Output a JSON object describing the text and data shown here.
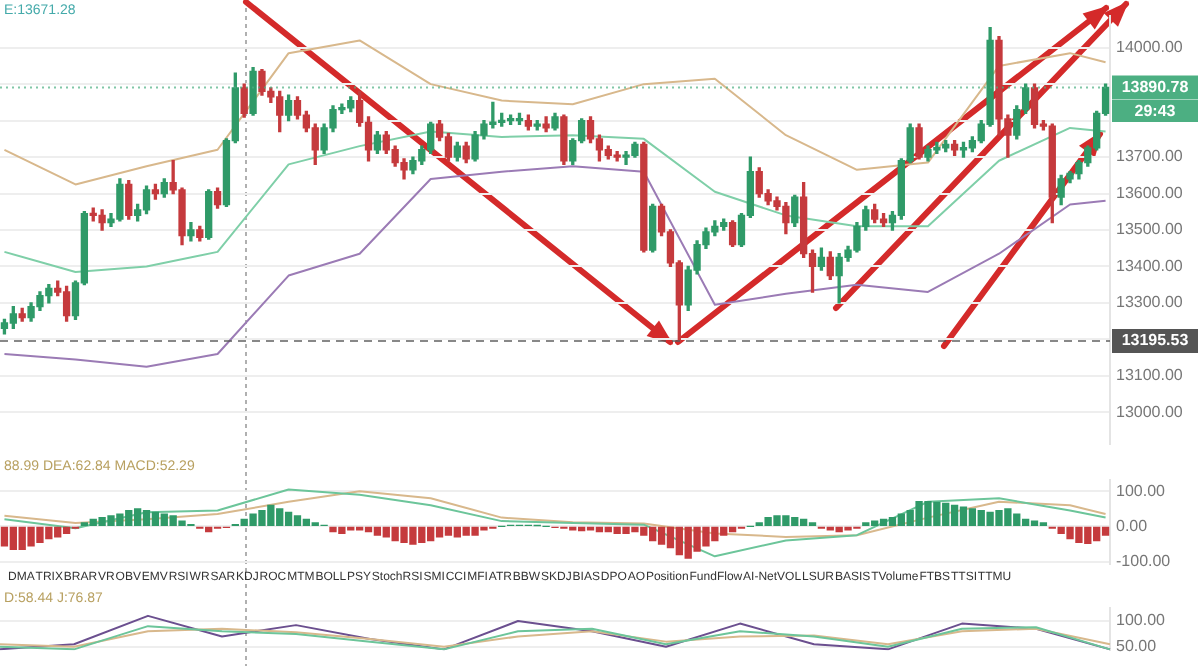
{
  "chart_data": [
    {
      "type": "candlestick",
      "categories": [
        null,
        null,
        null,
        null,
        null,
        null,
        null,
        null,
        null,
        null,
        null,
        null,
        null,
        null,
        null,
        null,
        null,
        null,
        null,
        null,
        null,
        null,
        null,
        null,
        null,
        null,
        null,
        null,
        null,
        null,
        null,
        null,
        null,
        null,
        null,
        null,
        null,
        null,
        null,
        null,
        null,
        null,
        null,
        null,
        null,
        null,
        null,
        null,
        null,
        null,
        null,
        null,
        null,
        null,
        null,
        null,
        null,
        null,
        null,
        null,
        null,
        null,
        null,
        null,
        null,
        null,
        null,
        null,
        null,
        null,
        null,
        null,
        null,
        null,
        null,
        null,
        null,
        null,
        null,
        null,
        null,
        null,
        null,
        null,
        null,
        null,
        null,
        null,
        null,
        null,
        null,
        null,
        null,
        null,
        null,
        null,
        null,
        null,
        null,
        null,
        null,
        null,
        null,
        null,
        null,
        null,
        null,
        null,
        null,
        null,
        null,
        null,
        null,
        null,
        null,
        null,
        null,
        null,
        null,
        null,
        null,
        null,
        null,
        null,
        null
      ],
      "ohlc": [
        [
          13230,
          13255,
          13215,
          13245
        ],
        [
          13245,
          13290,
          13230,
          13270
        ],
        [
          13270,
          13285,
          13250,
          13260
        ],
        [
          13260,
          13300,
          13250,
          13290
        ],
        [
          13290,
          13330,
          13280,
          13320
        ],
        [
          13320,
          13350,
          13300,
          13340
        ],
        [
          13340,
          13360,
          13320,
          13330
        ],
        [
          13330,
          13345,
          13250,
          13265
        ],
        [
          13265,
          13360,
          13255,
          13355
        ],
        [
          13355,
          13550,
          13350,
          13545
        ],
        [
          13545,
          13560,
          13525,
          13540
        ],
        [
          13540,
          13555,
          13500,
          13520
        ],
        [
          13520,
          13545,
          13510,
          13530
        ],
        [
          13530,
          13640,
          13525,
          13625
        ],
        [
          13625,
          13635,
          13530,
          13540
        ],
        [
          13540,
          13570,
          13525,
          13555
        ],
        [
          13555,
          13620,
          13545,
          13610
        ],
        [
          13610,
          13625,
          13585,
          13600
        ],
        [
          13600,
          13640,
          13590,
          13630
        ],
        [
          13630,
          13690,
          13600,
          13610
        ],
        [
          13610,
          13615,
          13460,
          13485
        ],
        [
          13485,
          13520,
          13470,
          13500
        ],
        [
          13500,
          13510,
          13470,
          13480
        ],
        [
          13480,
          13610,
          13475,
          13605
        ],
        [
          13605,
          13615,
          13560,
          13570
        ],
        [
          13570,
          13750,
          13565,
          13745
        ],
        [
          13745,
          13930,
          13740,
          13890
        ],
        [
          13890,
          13900,
          13810,
          13820
        ],
        [
          13820,
          13945,
          13815,
          13935
        ],
        [
          13935,
          13940,
          13870,
          13880
        ],
        [
          13880,
          13890,
          13850,
          13865
        ],
        [
          13865,
          13880,
          13770,
          13815
        ],
        [
          13815,
          13870,
          13800,
          13855
        ],
        [
          13855,
          13865,
          13805,
          13815
        ],
        [
          13815,
          13825,
          13770,
          13780
        ],
        [
          13780,
          13790,
          13680,
          13720
        ],
        [
          13720,
          13790,
          13710,
          13780
        ],
        [
          13780,
          13840,
          13770,
          13830
        ],
        [
          13830,
          13845,
          13820,
          13835
        ],
        [
          13835,
          13865,
          13825,
          13855
        ],
        [
          13855,
          13880,
          13785,
          13795
        ],
        [
          13795,
          13810,
          13690,
          13720
        ],
        [
          13720,
          13770,
          13710,
          13760
        ],
        [
          13760,
          13770,
          13710,
          13720
        ],
        [
          13720,
          13730,
          13675,
          13685
        ],
        [
          13685,
          13695,
          13640,
          13665
        ],
        [
          13665,
          13700,
          13655,
          13690
        ],
        [
          13690,
          13730,
          13680,
          13720
        ],
        [
          13720,
          13795,
          13710,
          13790
        ],
        [
          13790,
          13800,
          13745,
          13755
        ],
        [
          13755,
          13765,
          13690,
          13700
        ],
        [
          13700,
          13740,
          13690,
          13730
        ],
        [
          13730,
          13740,
          13685,
          13695
        ],
        [
          13695,
          13770,
          13690,
          13760
        ],
        [
          13760,
          13800,
          13750,
          13790
        ],
        [
          13790,
          13850,
          13780,
          13795
        ],
        [
          13795,
          13820,
          13785,
          13800
        ],
        [
          13800,
          13815,
          13790,
          13800
        ],
        [
          13800,
          13820,
          13790,
          13800
        ],
        [
          13800,
          13815,
          13775,
          13785
        ],
        [
          13785,
          13800,
          13775,
          13790
        ],
        [
          13790,
          13810,
          13770,
          13780
        ],
        [
          13780,
          13820,
          13775,
          13810
        ],
        [
          13810,
          13815,
          13680,
          13690
        ],
        [
          13690,
          13750,
          13680,
          13745
        ],
        [
          13745,
          13805,
          13740,
          13800
        ],
        [
          13800,
          13810,
          13740,
          13750
        ],
        [
          13750,
          13760,
          13690,
          13720
        ],
        [
          13720,
          13730,
          13695,
          13705
        ],
        [
          13705,
          13715,
          13690,
          13700
        ],
        [
          13700,
          13715,
          13680,
          13705
        ],
        [
          13705,
          13740,
          13700,
          13735
        ],
        [
          13735,
          13740,
          13440,
          13445
        ],
        [
          13445,
          13570,
          13440,
          13565
        ],
        [
          13565,
          13570,
          13485,
          13495
        ],
        [
          13495,
          13500,
          13400,
          13410
        ],
        [
          13410,
          13415,
          13195.53,
          13295
        ],
        [
          13295,
          13400,
          13280,
          13390
        ],
        [
          13390,
          13470,
          13380,
          13460
        ],
        [
          13460,
          13505,
          13450,
          13495
        ],
        [
          13495,
          13525,
          13485,
          13510
        ],
        [
          13510,
          13530,
          13500,
          13520
        ],
        [
          13520,
          13525,
          13455,
          13460
        ],
        [
          13460,
          13545,
          13455,
          13540
        ],
        [
          13540,
          13700,
          13535,
          13660
        ],
        [
          13660,
          13670,
          13590,
          13600
        ],
        [
          13600,
          13610,
          13570,
          13580
        ],
        [
          13580,
          13590,
          13555,
          13565
        ],
        [
          13565,
          13575,
          13490,
          13520
        ],
        [
          13520,
          13595,
          13510,
          13590
        ],
        [
          13590,
          13630,
          13425,
          13435
        ],
        [
          13435,
          13445,
          13330,
          13400
        ],
        [
          13400,
          13450,
          13390,
          13425
        ],
        [
          13425,
          13440,
          13365,
          13375
        ],
        [
          13375,
          13435,
          13300,
          13425
        ],
        [
          13425,
          13455,
          13415,
          13445
        ],
        [
          13445,
          13520,
          13440,
          13510
        ],
        [
          13510,
          13565,
          13500,
          13555
        ],
        [
          13555,
          13570,
          13520,
          13530
        ],
        [
          13530,
          13545,
          13510,
          13520
        ],
        [
          13520,
          13550,
          13500,
          13540
        ],
        [
          13540,
          13695,
          13530,
          13690
        ],
        [
          13690,
          13790,
          13685,
          13780
        ],
        [
          13780,
          13790,
          13695,
          13700
        ],
        [
          13700,
          13730,
          13690,
          13720
        ],
        [
          13720,
          13740,
          13710,
          13725
        ],
        [
          13725,
          13745,
          13715,
          13735
        ],
        [
          13735,
          13745,
          13705,
          13720
        ],
        [
          13720,
          13740,
          13700,
          13725
        ],
        [
          13725,
          13755,
          13715,
          13745
        ],
        [
          13745,
          13800,
          13740,
          13790
        ],
        [
          13790,
          14055,
          13785,
          14020
        ],
        [
          14020,
          14030,
          13760,
          13805
        ],
        [
          13805,
          13815,
          13700,
          13760
        ],
        [
          13760,
          13840,
          13750,
          13830
        ],
        [
          13830,
          13900,
          13820,
          13890
        ],
        [
          13890,
          13900,
          13780,
          13790
        ],
        [
          13790,
          13800,
          13775,
          13785
        ],
        [
          13785,
          13790,
          13520,
          13590
        ],
        [
          13590,
          13650,
          13570,
          13640
        ],
        [
          13640,
          13660,
          13630,
          13655
        ],
        [
          13655,
          13690,
          13640,
          13685
        ],
        [
          13685,
          13730,
          13675,
          13725
        ],
        [
          13725,
          13825,
          13720,
          13820
        ],
        [
          13820,
          13900,
          13815,
          13890.78
        ]
      ],
      "colors": [
        "#2f9a68",
        "#2f9a68",
        "#c53a3d",
        "#2f9a68",
        "#2f9a68",
        "#2f9a68",
        "#c53a3d",
        "#c53a3d",
        "#2f9a68",
        "#2f9a68",
        "#c53a3d",
        "#c53a3d",
        "#2f9a68",
        "#2f9a68",
        "#c53a3d",
        "#2f9a68",
        "#2f9a68",
        "#c53a3d",
        "#2f9a68",
        "#c53a3d",
        "#c53a3d",
        "#2f9a68",
        "#c53a3d",
        "#2f9a68",
        "#c53a3d",
        "#2f9a68",
        "#2f9a68",
        "#c53a3d",
        "#2f9a68",
        "#c53a3d",
        "#c53a3d",
        "#c53a3d",
        "#2f9a68",
        "#c53a3d",
        "#c53a3d",
        "#c53a3d",
        "#2f9a68",
        "#2f9a68",
        "#2f9a68",
        "#2f9a68",
        "#c53a3d",
        "#c53a3d",
        "#2f9a68",
        "#c53a3d",
        "#c53a3d",
        "#c53a3d",
        "#2f9a68",
        "#2f9a68",
        "#2f9a68",
        "#c53a3d",
        "#c53a3d",
        "#2f9a68",
        "#c53a3d",
        "#2f9a68",
        "#2f9a68",
        "#2f9a68",
        "#2f9a68",
        "#2f9a68",
        "#2f9a68",
        "#c53a3d",
        "#2f9a68",
        "#c53a3d",
        "#2f9a68",
        "#c53a3d",
        "#2f9a68",
        "#2f9a68",
        "#c53a3d",
        "#c53a3d",
        "#c53a3d",
        "#c53a3d",
        "#2f9a68",
        "#2f9a68",
        "#c53a3d",
        "#2f9a68",
        "#c53a3d",
        "#c53a3d",
        "#c53a3d",
        "#2f9a68",
        "#2f9a68",
        "#2f9a68",
        "#2f9a68",
        "#2f9a68",
        "#c53a3d",
        "#2f9a68",
        "#2f9a68",
        "#c53a3d",
        "#c53a3d",
        "#c53a3d",
        "#c53a3d",
        "#2f9a68",
        "#c53a3d",
        "#c53a3d",
        "#2f9a68",
        "#c53a3d",
        "#2f9a68",
        "#2f9a68",
        "#2f9a68",
        "#2f9a68",
        "#c53a3d",
        "#c53a3d",
        "#2f9a68",
        "#2f9a68",
        "#2f9a68",
        "#c53a3d",
        "#2f9a68",
        "#2f9a68",
        "#2f9a68",
        "#c53a3d",
        "#2f9a68",
        "#2f9a68",
        "#2f9a68",
        "#2f9a68",
        "#c53a3d",
        "#c53a3d",
        "#2f9a68",
        "#2f9a68",
        "#c53a3d",
        "#c53a3d",
        "#c53a3d",
        "#2f9a68",
        "#2f9a68",
        "#2f9a68",
        "#2f9a68",
        "#2f9a68",
        "#2f9a68"
      ],
      "series": [
        {
          "type": "line",
          "color": "#d8b88c",
          "values": [
            13720,
            null,
            null,
            null,
            null,
            null,
            null,
            null,
            13625,
            null,
            null,
            null,
            null,
            null,
            null,
            null,
            13675,
            null,
            null,
            null,
            null,
            null,
            null,
            null,
            13720,
            null,
            null,
            null,
            null,
            null,
            null,
            null,
            13985,
            null,
            null,
            null,
            null,
            null,
            null,
            null,
            14020,
            null,
            null,
            null,
            null,
            null,
            null,
            null,
            13900,
            null,
            null,
            null,
            null,
            null,
            null,
            null,
            13855,
            null,
            null,
            null,
            null,
            null,
            null,
            null,
            13845,
            null,
            null,
            null,
            null,
            null,
            null,
            null,
            13900,
            null,
            null,
            null,
            null,
            null,
            null,
            null,
            13915,
            null,
            null,
            null,
            null,
            null,
            null,
            null,
            13760,
            null,
            null,
            null,
            null,
            null,
            null,
            null,
            13665,
            null,
            null,
            null,
            null,
            null,
            null,
            null,
            13685,
            null,
            null,
            null,
            null,
            null,
            null,
            null,
            13950,
            null,
            null,
            null,
            null,
            null,
            null,
            null,
            13985,
            null,
            null,
            null,
            13960
          ]
        },
        {
          "type": "line",
          "color": "#7fcfa8",
          "values": [
            13440,
            null,
            null,
            null,
            null,
            null,
            null,
            null,
            13385,
            null,
            null,
            null,
            null,
            null,
            null,
            null,
            13400,
            null,
            null,
            null,
            null,
            null,
            null,
            null,
            13440,
            null,
            null,
            null,
            null,
            null,
            null,
            null,
            13680,
            null,
            null,
            null,
            null,
            null,
            null,
            null,
            13730,
            null,
            null,
            null,
            null,
            null,
            null,
            null,
            13770,
            null,
            null,
            null,
            null,
            null,
            null,
            null,
            13755,
            null,
            null,
            null,
            null,
            null,
            null,
            null,
            13760,
            null,
            null,
            null,
            null,
            null,
            null,
            null,
            13750,
            null,
            null,
            null,
            null,
            null,
            null,
            null,
            13605,
            null,
            null,
            null,
            null,
            null,
            null,
            null,
            13540,
            null,
            null,
            null,
            null,
            null,
            null,
            null,
            13510,
            null,
            null,
            null,
            null,
            null,
            null,
            null,
            13510,
            null,
            null,
            null,
            null,
            null,
            null,
            null,
            13690,
            null,
            null,
            null,
            null,
            null,
            null,
            null,
            13780,
            null,
            null,
            null,
            13770
          ]
        },
        {
          "type": "line",
          "color": "#9b7bb5",
          "values": [
            13160,
            null,
            null,
            null,
            null,
            null,
            null,
            null,
            13145,
            null,
            null,
            null,
            null,
            null,
            null,
            null,
            13125,
            null,
            null,
            null,
            null,
            null,
            null,
            null,
            13160,
            null,
            null,
            null,
            null,
            null,
            null,
            null,
            13375,
            null,
            null,
            null,
            null,
            null,
            null,
            null,
            13435,
            null,
            null,
            null,
            null,
            null,
            null,
            null,
            13640,
            null,
            null,
            null,
            null,
            null,
            null,
            null,
            13660,
            null,
            null,
            null,
            null,
            null,
            null,
            null,
            13675,
            null,
            null,
            null,
            null,
            null,
            null,
            null,
            13660,
            null,
            null,
            null,
            null,
            null,
            null,
            null,
            13295,
            null,
            null,
            null,
            null,
            null,
            null,
            null,
            13325,
            null,
            null,
            null,
            null,
            null,
            null,
            null,
            13350,
            null,
            null,
            null,
            null,
            null,
            null,
            null,
            13330,
            null,
            null,
            null,
            null,
            null,
            null,
            null,
            13435,
            null,
            null,
            null,
            null,
            null,
            null,
            null,
            13570,
            null,
            null,
            null,
            13580
          ]
        }
      ],
      "ylim": [
        12912,
        14088
      ],
      "yticks": [
        {
          "value": 13000,
          "label": "13000.00"
        },
        {
          "value": 13100,
          "label": "13100.00"
        },
        {
          "value": 13200,
          "label": null
        },
        {
          "value": 13300,
          "label": "13300.00"
        },
        {
          "value": 13400,
          "label": "13400.00"
        },
        {
          "value": 13500,
          "label": "13500.00"
        },
        {
          "value": 13600,
          "label": "13600.00"
        },
        {
          "value": 13700,
          "label": "13700.00"
        },
        {
          "value": 13800,
          "label": null
        },
        {
          "value": 13900,
          "label": null
        },
        {
          "value": 14000,
          "label": "14000.00"
        }
      ],
      "ref_lines": [
        {
          "axis": "y",
          "value": 13890.78,
          "label": "13890.78",
          "color": "#4caf82",
          "line_style": "dotted"
        },
        {
          "axis": "y",
          "value": 13195.53,
          "label": "13195.53",
          "color": "#555555",
          "line_style": "dashed"
        }
      ],
      "annotations": [
        "E:13671.28",
        "29:43"
      ],
      "grid": "y",
      "tick_labels": "y",
      "legend": false
    },
    {
      "type": "bar",
      "categories": [
        null,
        null,
        null,
        null,
        null,
        null,
        null,
        null,
        null,
        null,
        null,
        null,
        null,
        null,
        null,
        null,
        null,
        null,
        null,
        null,
        null,
        null,
        null,
        null,
        null,
        null,
        null,
        null,
        null,
        null,
        null,
        null,
        null,
        null,
        null,
        null,
        null,
        null,
        null,
        null,
        null,
        null,
        null,
        null,
        null,
        null,
        null,
        null,
        null,
        null,
        null,
        null,
        null,
        null,
        null,
        null,
        null,
        null,
        null,
        null,
        null,
        null,
        null,
        null,
        null,
        null,
        null,
        null,
        null,
        null,
        null,
        null,
        null,
        null,
        null,
        null,
        null,
        null,
        null,
        null,
        null,
        null,
        null,
        null,
        null,
        null,
        null,
        null,
        null,
        null,
        null,
        null,
        null,
        null,
        null,
        null,
        null,
        null,
        null,
        null,
        null,
        null,
        null,
        null,
        null,
        null,
        null,
        null,
        null,
        null,
        null,
        null,
        null,
        null,
        null,
        null,
        null,
        null,
        null,
        null,
        null,
        null,
        null,
        null,
        null
      ],
      "values": [
        -55,
        -65,
        -65,
        -55,
        -45,
        -35,
        -30,
        -20,
        -5,
        10,
        20,
        25,
        30,
        35,
        45,
        50,
        45,
        40,
        35,
        30,
        15,
        5,
        -5,
        -15,
        -5,
        -3,
        5,
        20,
        35,
        45,
        60,
        50,
        40,
        30,
        20,
        10,
        3,
        -15,
        -20,
        -10,
        -10,
        -15,
        -25,
        -30,
        -40,
        -45,
        -50,
        -45,
        -40,
        -30,
        -25,
        -30,
        -25,
        -25,
        -10,
        -5,
        0,
        3,
        3,
        3,
        2,
        0,
        -3,
        -5,
        -10,
        -12,
        -10,
        -15,
        -15,
        -20,
        -20,
        -15,
        -25,
        -40,
        -50,
        -60,
        -80,
        -90,
        -70,
        -55,
        -40,
        -25,
        -15,
        -5,
        0,
        10,
        25,
        30,
        30,
        25,
        20,
        10,
        -5,
        -10,
        -15,
        -10,
        -5,
        10,
        15,
        20,
        25,
        35,
        45,
        70,
        70,
        68,
        65,
        60,
        55,
        50,
        45,
        40,
        45,
        50,
        35,
        20,
        15,
        10,
        -5,
        -20,
        -35,
        -45,
        -48,
        -40,
        -25
      ],
      "colors": [
        "#c53a3d",
        "#c53a3d",
        "#c53a3d",
        "#c53a3d",
        "#c53a3d",
        "#c53a3d",
        "#c53a3d",
        "#c53a3d",
        "#c53a3d",
        "#2f9a68",
        "#2f9a68",
        "#2f9a68",
        "#2f9a68",
        "#2f9a68",
        "#2f9a68",
        "#2f9a68",
        "#2f9a68",
        "#2f9a68",
        "#2f9a68",
        "#2f9a68",
        "#2f9a68",
        "#2f9a68",
        "#c53a3d",
        "#c53a3d",
        "#c53a3d",
        "#c53a3d",
        "#2f9a68",
        "#2f9a68",
        "#2f9a68",
        "#2f9a68",
        "#2f9a68",
        "#2f9a68",
        "#2f9a68",
        "#2f9a68",
        "#2f9a68",
        "#2f9a68",
        "#2f9a68",
        "#c53a3d",
        "#c53a3d",
        "#c53a3d",
        "#c53a3d",
        "#c53a3d",
        "#c53a3d",
        "#c53a3d",
        "#c53a3d",
        "#c53a3d",
        "#c53a3d",
        "#c53a3d",
        "#c53a3d",
        "#c53a3d",
        "#c53a3d",
        "#c53a3d",
        "#c53a3d",
        "#c53a3d",
        "#c53a3d",
        "#c53a3d",
        "#2f9a68",
        "#2f9a68",
        "#2f9a68",
        "#2f9a68",
        "#2f9a68",
        "#2f9a68",
        "#c53a3d",
        "#c53a3d",
        "#c53a3d",
        "#c53a3d",
        "#c53a3d",
        "#c53a3d",
        "#c53a3d",
        "#c53a3d",
        "#c53a3d",
        "#c53a3d",
        "#c53a3d",
        "#c53a3d",
        "#c53a3d",
        "#c53a3d",
        "#c53a3d",
        "#c53a3d",
        "#c53a3d",
        "#c53a3d",
        "#c53a3d",
        "#c53a3d",
        "#c53a3d",
        "#c53a3d",
        "#2f9a68",
        "#2f9a68",
        "#2f9a68",
        "#2f9a68",
        "#2f9a68",
        "#2f9a68",
        "#2f9a68",
        "#2f9a68",
        "#c53a3d",
        "#c53a3d",
        "#c53a3d",
        "#c53a3d",
        "#c53a3d",
        "#2f9a68",
        "#2f9a68",
        "#2f9a68",
        "#2f9a68",
        "#2f9a68",
        "#2f9a68",
        "#2f9a68",
        "#2f9a68",
        "#2f9a68",
        "#2f9a68",
        "#2f9a68",
        "#2f9a68",
        "#2f9a68",
        "#2f9a68",
        "#2f9a68",
        "#2f9a68",
        "#2f9a68",
        "#2f9a68",
        "#2f9a68",
        "#2f9a68",
        "#2f9a68",
        "#c53a3d",
        "#c53a3d",
        "#c53a3d",
        "#c53a3d",
        "#c53a3d",
        "#c53a3d",
        "#c53a3d"
      ],
      "series": [
        {
          "type": "line",
          "color": "#6cc59a",
          "values": [
            20,
            null,
            null,
            null,
            null,
            null,
            null,
            null,
            -5,
            null,
            null,
            null,
            null,
            null,
            null,
            null,
            40,
            null,
            null,
            null,
            null,
            null,
            null,
            null,
            45,
            null,
            null,
            null,
            null,
            null,
            null,
            null,
            105,
            null,
            null,
            null,
            null,
            null,
            null,
            null,
            90,
            null,
            null,
            null,
            null,
            null,
            null,
            null,
            60,
            null,
            null,
            null,
            null,
            null,
            null,
            null,
            15,
            null,
            null,
            null,
            null,
            null,
            null,
            null,
            10,
            null,
            null,
            null,
            null,
            null,
            null,
            null,
            5,
            null,
            null,
            null,
            null,
            null,
            null,
            null,
            -85,
            null,
            null,
            null,
            null,
            null,
            null,
            null,
            -40,
            null,
            null,
            null,
            null,
            null,
            null,
            null,
            -25,
            null,
            null,
            null,
            null,
            null,
            null,
            null,
            70,
            null,
            null,
            null,
            null,
            null,
            null,
            null,
            80,
            null,
            null,
            null,
            null,
            null,
            null,
            null,
            45,
            null,
            null,
            null,
            25
          ]
        },
        {
          "type": "line",
          "color": "#d8b88c",
          "values": [
            30,
            null,
            null,
            null,
            null,
            null,
            null,
            null,
            10,
            null,
            null,
            null,
            null,
            null,
            null,
            null,
            20,
            null,
            null,
            null,
            null,
            null,
            null,
            null,
            35,
            null,
            null,
            null,
            null,
            null,
            null,
            null,
            70,
            null,
            null,
            null,
            null,
            null,
            null,
            null,
            100,
            null,
            null,
            null,
            null,
            null,
            null,
            null,
            80,
            null,
            null,
            null,
            null,
            null,
            null,
            null,
            25,
            null,
            null,
            null,
            null,
            null,
            null,
            null,
            12,
            null,
            null,
            null,
            null,
            null,
            null,
            null,
            8,
            null,
            null,
            null,
            null,
            null,
            null,
            null,
            -20,
            null,
            null,
            null,
            null,
            null,
            null,
            null,
            -30,
            null,
            null,
            null,
            null,
            null,
            null,
            null,
            -25,
            null,
            null,
            null,
            null,
            null,
            null,
            null,
            25,
            null,
            null,
            null,
            null,
            null,
            null,
            null,
            70,
            null,
            null,
            null,
            null,
            null,
            null,
            null,
            60,
            null,
            null,
            null,
            35
          ]
        }
      ],
      "ylim": [
        -108,
        133
      ],
      "yticks": [
        {
          "value": 100,
          "label": "100.00"
        },
        {
          "value": 0,
          "label": "0.00"
        },
        {
          "value": -100,
          "label": "-100.00"
        }
      ],
      "annotations": [
        "88.99 DEA:62.84 MACD:52.29",
        "DMA",
        "TRIX",
        "BRAR",
        "VR",
        "OBV",
        "EMV",
        "RSI",
        "WR",
        "SAR",
        "KDJ",
        "ROC",
        "MTM",
        "BOLL",
        "PSY",
        "StochRSI",
        "SMI",
        "CCI",
        "MFI",
        "ATR",
        "BBW",
        "SKDJ",
        "BIAS",
        "DPO",
        "AO",
        "Position",
        "FundFlow",
        "AI-NetVOL",
        "LSUR",
        "BASIS",
        "TVolume",
        "FTBS",
        "TTSI",
        "TTMU"
      ],
      "grid": "y",
      "tick_labels": "y",
      "legend": false
    },
    {
      "type": "line",
      "categories": [
        null,
        null,
        null,
        null,
        null,
        null,
        null,
        null,
        null,
        null,
        null,
        null,
        null,
        null,
        null,
        null
      ],
      "series": [
        {
          "color": "#6cc59a",
          "values": [
            50,
            45,
            90,
            80,
            75,
            60,
            45,
            80,
            85,
            55,
            80,
            70,
            50,
            85,
            88,
            45
          ]
        },
        {
          "color": "#d8b88c",
          "values": [
            55,
            50,
            80,
            85,
            78,
            65,
            50,
            70,
            80,
            60,
            70,
            72,
            55,
            80,
            85,
            55
          ]
        },
        {
          "color": "#6b4f8f",
          "values": [
            45,
            55,
            110,
            70,
            92,
            65,
            45,
            100,
            80,
            50,
            95,
            55,
            45,
            95,
            85,
            45
          ]
        }
      ],
      "ylim": [
        43,
        126
      ],
      "yticks": [
        {
          "value": 100,
          "label": "100.00"
        },
        {
          "value": 50,
          "label": "50.00"
        }
      ],
      "annotations": [
        "D:58.44 J:76.87"
      ],
      "grid": "y",
      "tick_labels": "y",
      "legend": false
    }
  ]
}
